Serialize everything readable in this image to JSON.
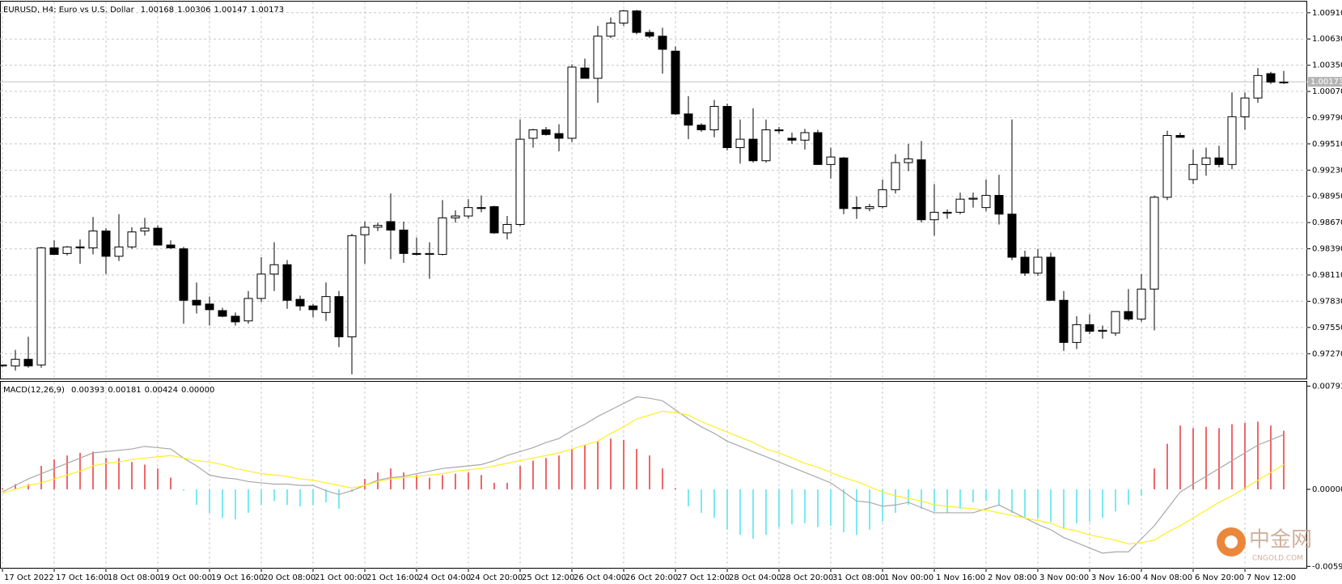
{
  "chart_data": [
    {
      "type": "candlestick",
      "title": "EURUSD, H4:  Euro vs U.S. Dollar",
      "readout": [
        1.00168,
        1.00306,
        1.00147,
        1.00173
      ],
      "categories": [
        "17 Oct 2022",
        null,
        null,
        null,
        "17 Oct 16:00",
        null,
        null,
        null,
        "18 Oct 08:00",
        null,
        null,
        null,
        "19 Oct 00:00",
        null,
        null,
        null,
        "19 Oct 16:00",
        null,
        null,
        null,
        "20 Oct 08:00",
        null,
        null,
        null,
        "21 Oct 00:00",
        null,
        null,
        null,
        "21 Oct 16:00",
        null,
        null,
        null,
        "24 Oct 04:00",
        null,
        null,
        null,
        "24 Oct 20:00",
        null,
        null,
        null,
        "25 Oct 12:00",
        null,
        null,
        null,
        "26 Oct 04:00",
        null,
        null,
        null,
        "26 Oct 20:00",
        null,
        null,
        null,
        "27 Oct 12:00",
        null,
        null,
        null,
        "28 Oct 04:00",
        null,
        null,
        null,
        "28 Oct 20:00",
        null,
        null,
        null,
        "31 Oct 08:00",
        null,
        null,
        null,
        "1 Nov 00:00",
        null,
        null,
        null,
        "1 Nov 16:00",
        null,
        null,
        null,
        "2 Nov 08:00",
        null,
        null,
        null,
        "3 Nov 00:00",
        null,
        null,
        null,
        "3 Nov 16:00",
        null,
        null,
        null,
        "4 Nov 08:00",
        null,
        null,
        null,
        "6 Nov 20:00",
        null,
        null,
        null,
        "7 Nov 12:00",
        null,
        null,
        null
      ],
      "open": [
        0.9714,
        0.9714,
        0.9721,
        0.9715,
        0.984,
        0.9834,
        0.9841,
        0.984,
        0.9858,
        0.9831,
        0.9841,
        0.9858,
        0.9861,
        0.9843,
        0.9839,
        0.9784,
        0.978,
        0.9773,
        0.9767,
        0.9762,
        0.9786,
        0.9812,
        0.9822,
        0.9785,
        0.9778,
        0.9771,
        0.9788,
        0.9745,
        0.9854,
        0.9862,
        0.9868,
        0.9859,
        0.9834,
        0.9833,
        0.9833,
        0.9872,
        0.9874,
        0.9883,
        0.9884,
        0.9856,
        0.9865,
        0.9957,
        0.9966,
        0.9962,
        0.9957,
        1.0032,
        1.0021,
        1.0066,
        1.008,
        1.0093,
        1.007,
        1.0066,
        1.005,
        0.9983,
        0.9971,
        0.9966,
        0.9991,
        0.9947,
        0.9956,
        0.9933,
        0.9966,
        0.9957,
        0.9955,
        0.9963,
        0.9929,
        0.9936,
        0.9883,
        0.9882,
        0.9884,
        0.9902,
        0.9931,
        0.9934,
        0.987,
        0.9877,
        0.9878,
        0.9892,
        0.9883,
        0.9896,
        0.9876,
        0.983,
        0.9813,
        0.983,
        0.9784,
        0.9739,
        0.9758,
        0.9751,
        0.9749,
        0.9772,
        0.9764,
        0.9796,
        0.9894,
        0.996,
        0.9913,
        0.9929,
        0.9936,
        0.9929,
        0.998,
        1.0,
        1.0026,
        1.0017
      ],
      "high": [
        0.9715,
        0.9731,
        0.9745,
        0.9841,
        0.9848,
        0.9842,
        0.9849,
        0.9873,
        0.9861,
        0.9876,
        0.9862,
        0.9872,
        0.9864,
        0.9848,
        0.9841,
        0.9803,
        0.9788,
        0.9776,
        0.9771,
        0.9794,
        0.983,
        0.9846,
        0.9827,
        0.9789,
        0.978,
        0.9803,
        0.9794,
        0.9855,
        0.9868,
        0.9867,
        0.9898,
        0.9868,
        0.9851,
        0.9846,
        0.9891,
        0.988,
        0.9892,
        0.9896,
        0.9885,
        0.9874,
        0.9977,
        0.9967,
        0.9969,
        0.9972,
        1.0036,
        1.0042,
        1.0077,
        1.0086,
        1.0094,
        1.0094,
        1.0073,
        1.0075,
        1.0055,
        1.0002,
        0.9973,
        0.9998,
        0.9994,
        0.9977,
        0.9989,
        0.9977,
        0.9969,
        0.9963,
        0.9967,
        0.9966,
        0.9947,
        0.9937,
        0.9895,
        0.9887,
        0.9913,
        0.994,
        0.9951,
        0.9954,
        0.9908,
        0.9881,
        0.9899,
        0.9899,
        0.9913,
        0.9918,
        0.9977,
        0.9837,
        0.9839,
        0.9835,
        0.9794,
        0.9767,
        0.9769,
        0.9757,
        0.9772,
        0.9796,
        0.9812,
        0.9896,
        0.9965,
        0.9963,
        0.9945,
        0.9947,
        0.9949,
        1.0006,
        1.0006,
        1.0032,
        1.0028,
        1.0029
      ],
      "low": [
        0.9713,
        0.9709,
        0.9712,
        0.9712,
        0.9833,
        0.9832,
        0.9823,
        0.9833,
        0.9812,
        0.9826,
        0.9839,
        0.9853,
        0.9843,
        0.9839,
        0.9759,
        0.977,
        0.9757,
        0.9766,
        0.9757,
        0.9759,
        0.9782,
        0.9794,
        0.9775,
        0.9773,
        0.9766,
        0.9762,
        0.9734,
        0.9705,
        0.9823,
        0.9858,
        0.9828,
        0.9824,
        0.9832,
        0.9807,
        0.9832,
        0.9867,
        0.9871,
        0.9878,
        0.9855,
        0.9849,
        0.9863,
        0.9947,
        0.996,
        0.9943,
        0.9953,
        1.0021,
        0.9995,
        1.0064,
        1.0077,
        1.0068,
        1.0064,
        1.0026,
        0.9982,
        0.9956,
        0.9964,
        0.9958,
        0.9944,
        0.993,
        0.9931,
        0.9931,
        0.9962,
        0.9951,
        0.9945,
        0.9929,
        0.9914,
        0.9876,
        0.9871,
        0.9879,
        0.9882,
        0.9898,
        0.9922,
        0.9867,
        0.9853,
        0.9871,
        0.9876,
        0.9883,
        0.9879,
        0.9865,
        0.9827,
        0.981,
        0.981,
        0.9784,
        0.973,
        0.9732,
        0.9748,
        0.9743,
        0.9746,
        0.9762,
        0.9761,
        0.9752,
        0.9891,
        0.9958,
        0.9908,
        0.9917,
        0.9926,
        0.9924,
        0.9966,
        0.9995,
        1.0015,
        1.0015
      ],
      "close": [
        0.9715,
        0.9721,
        0.9714,
        0.984,
        0.9833,
        0.9841,
        0.984,
        0.9858,
        0.9831,
        0.9841,
        0.9857,
        0.9861,
        0.9843,
        0.984,
        0.9784,
        0.9779,
        0.9774,
        0.9767,
        0.9761,
        0.9786,
        0.9812,
        0.9822,
        0.9784,
        0.9778,
        0.9774,
        0.9788,
        0.9745,
        0.9853,
        0.9862,
        0.9864,
        0.9859,
        0.9834,
        0.9833,
        0.9834,
        0.9872,
        0.9874,
        0.9883,
        0.9882,
        0.9856,
        0.9865,
        0.9956,
        0.9966,
        0.9961,
        0.9957,
        1.0033,
        1.0021,
        1.0066,
        1.008,
        1.0093,
        1.007,
        1.0066,
        1.0052,
        0.9983,
        0.9971,
        0.9966,
        0.9991,
        0.9947,
        0.9956,
        0.9933,
        0.9966,
        0.9965,
        0.9955,
        0.9963,
        0.9929,
        0.9937,
        0.9882,
        0.9882,
        0.9884,
        0.9902,
        0.9931,
        0.9935,
        0.987,
        0.9878,
        0.9878,
        0.9892,
        0.9893,
        0.9896,
        0.9876,
        0.983,
        0.9813,
        0.983,
        0.9784,
        0.9739,
        0.9758,
        0.9751,
        0.9752,
        0.9772,
        0.9764,
        0.9796,
        0.9894,
        0.996,
        0.9958,
        0.9929,
        0.9936,
        0.9929,
        0.998,
        1.0,
        1.0024,
        1.0017,
        1.0017
      ],
      "up_color": "#ffffff",
      "down_color": "#000000",
      "wick_color": "#000000",
      "ylim": [
        0.96996,
        1.01029
      ],
      "yticks": [
        {
          "value": 1.0091,
          "label": "1.00910"
        },
        {
          "value": 1.0063,
          "label": "1.00630"
        },
        {
          "value": 1.0035,
          "label": "1.00350"
        },
        {
          "value": 1.0007,
          "label": "1.00070"
        },
        {
          "value": 0.9979,
          "label": "0.99790"
        },
        {
          "value": 0.9951,
          "label": "0.99510"
        },
        {
          "value": 0.9923,
          "label": "0.99230"
        },
        {
          "value": 0.9895,
          "label": "0.98950"
        },
        {
          "value": 0.9867,
          "label": "0.98670"
        },
        {
          "value": 0.9839,
          "label": "0.98390"
        },
        {
          "value": 0.9811,
          "label": "0.98110"
        },
        {
          "value": 0.9783,
          "label": "0.97830"
        },
        {
          "value": 0.9755,
          "label": "0.97550"
        },
        {
          "value": 0.9727,
          "label": "0.97270"
        }
      ],
      "grid": true,
      "last_price": 1.00173
    },
    {
      "type": "macd",
      "title": "MACD(12,26,9)",
      "readout": [
        0.00393,
        0.00181,
        0.00424,
        {
          "value": 0,
          "label": "0.00000"
        }
      ],
      "ylim": [
        -0.00609,
        0.00826
      ],
      "yticks": [
        0.00793,
        {
          "value": 0,
          "label": "0.00000"
        },
        -0.00592
      ],
      "grid": "x",
      "histogram": {
        "up_color": "#e8262b",
        "down_color": "#41e0ec",
        "values": [
          0.0001,
          0.0004,
          0.0004,
          0.0018,
          0.0023,
          0.0026,
          0.0028,
          0.0029,
          0.0024,
          0.0024,
          0.0021,
          0.0019,
          0.0016,
          0.0009,
          -0.0001,
          -0.0012,
          -0.0018,
          -0.0022,
          -0.0023,
          -0.0018,
          -0.0012,
          -0.0009,
          -0.0012,
          -0.0013,
          -0.0012,
          -0.001,
          -0.0015,
          -0.0002,
          0.0008,
          0.0013,
          0.0016,
          0.0013,
          0.0011,
          0.0009,
          0.0011,
          0.0012,
          0.0013,
          0.0011,
          0.0005,
          0.0005,
          0.0018,
          0.0022,
          0.0024,
          0.0026,
          0.0031,
          0.0034,
          0.0037,
          0.0039,
          0.0038,
          0.0031,
          0.0026,
          0.0016,
          0.0001,
          -0.0013,
          -0.0018,
          -0.0022,
          -0.0031,
          -0.0035,
          -0.0038,
          -0.0035,
          -0.0029,
          -0.0027,
          -0.0026,
          -0.0029,
          -0.0028,
          -0.0033,
          -0.0035,
          -0.0031,
          -0.0025,
          -0.0018,
          -0.0012,
          -0.0015,
          -0.0017,
          -0.0018,
          -0.0015,
          -0.001,
          -0.0009,
          -0.0012,
          -0.0018,
          -0.0022,
          -0.0022,
          -0.0025,
          -0.003,
          -0.0026,
          -0.0025,
          -0.0022,
          -0.0017,
          -0.0012,
          -0.0005,
          0.0016,
          0.0035,
          0.0049,
          0.0047,
          0.0048,
          0.0047,
          0.005,
          0.0051,
          0.0052,
          0.0049,
          0.0045
        ]
      },
      "lines": [
        {
          "color": "#a8a8a8",
          "values": [
            -0.0002,
            0.0003,
            0.0008,
            0.0012,
            0.0016,
            0.002,
            0.0024,
            0.0028,
            0.0029,
            0.003,
            0.0031,
            0.0033,
            0.0032,
            0.0031,
            0.0024,
            0.0018,
            0.0011,
            0.0009,
            0.0008,
            0.0006,
            0.0005,
            0.0004,
            0.0004,
            0.0003,
            0.0003,
            -0.0001,
            -0.0004,
            -0.0001,
            0.0003,
            0.0007,
            0.0009,
            0.001,
            0.0012,
            0.0014,
            0.0016,
            0.0017,
            0.0018,
            0.0019,
            0.0022,
            0.0026,
            0.0029,
            0.0032,
            0.0036,
            0.0039,
            0.0045,
            0.005,
            0.0056,
            0.0061,
            0.0066,
            0.0071,
            0.007,
            0.0068,
            0.0061,
            0.0054,
            0.0048,
            0.0043,
            0.0037,
            0.0033,
            0.0029,
            0.0025,
            0.0021,
            0.0017,
            0.0013,
            0.0009,
            0.0005,
            -0.0002,
            -0.0009,
            -0.001,
            -0.0013,
            -0.0012,
            -0.001,
            -0.0014,
            -0.0018,
            -0.0018,
            -0.0018,
            -0.0018,
            -0.0015,
            -0.0012,
            -0.0017,
            -0.0022,
            -0.0027,
            -0.0031,
            -0.0037,
            -0.0041,
            -0.0045,
            -0.0049,
            -0.0048,
            -0.0048,
            -0.0038,
            -0.0028,
            -0.0015,
            -0.0002,
            0.0004,
            0.001,
            0.0016,
            0.0022,
            0.0028,
            0.0034,
            0.0038,
            0.0042
          ]
        },
        {
          "color": "#ffee22",
          "values": [
            -0.0003,
            0,
            0.0003,
            0.0005,
            0.0008,
            0.0011,
            0.0014,
            0.0018,
            0.002,
            0.0021,
            0.0023,
            0.0024,
            0.0025,
            0.0026,
            0.0024,
            0.0022,
            0.0021,
            0.0019,
            0.0016,
            0.0014,
            0.0012,
            0.0011,
            0.001,
            0.0008,
            0.0007,
            0.0005,
            0.0003,
            0.0001,
            0.0003,
            0.0006,
            0.0008,
            0.0009,
            0.001,
            0.0011,
            0.0012,
            0.0014,
            0.0015,
            0.0016,
            0.0018,
            0.002,
            0.0022,
            0.0024,
            0.0026,
            0.0028,
            0.0031,
            0.0034,
            0.0037,
            0.0043,
            0.0048,
            0.0054,
            0.0057,
            0.006,
            0.0059,
            0.0057,
            0.0052,
            0.0048,
            0.0044,
            0.004,
            0.0036,
            0.0031,
            0.0028,
            0.0024,
            0.002,
            0.0017,
            0.0013,
            0.0009,
            0.0006,
            0.0002,
            -0.0002,
            -0.0005,
            -0.0007,
            -0.0009,
            -0.0012,
            -0.0013,
            -0.0014,
            -0.0015,
            -0.0016,
            -0.0018,
            -0.002,
            -0.0022,
            -0.0024,
            -0.0026,
            -0.003,
            -0.0032,
            -0.0035,
            -0.0037,
            -0.0039,
            -0.0042,
            -0.0041,
            -0.0039,
            -0.0033,
            -0.0028,
            -0.0022,
            -0.0016,
            -0.001,
            -0.0005,
            0.0001,
            0.0007,
            0.0013,
            0.0019
          ]
        }
      ]
    }
  ],
  "watermark": {
    "title": "中金网",
    "subtitle": "CNGOLD.COM"
  }
}
